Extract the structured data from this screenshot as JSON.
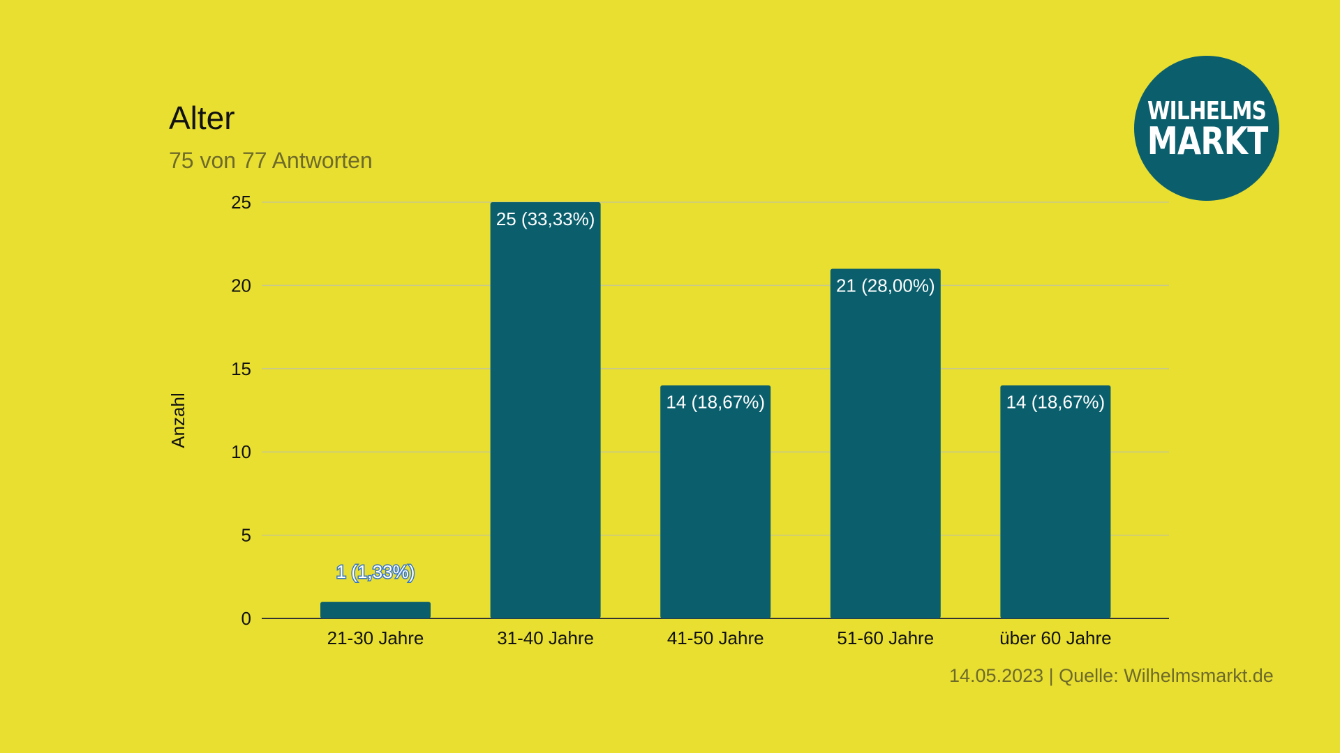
{
  "title": "Alter",
  "subtitle": "75 von 77 Antworten",
  "footer": "14.05.2023 | Quelle: Wilhelmsmarkt.de",
  "logo": {
    "line1": "WILHELMS",
    "line2": "MARKT"
  },
  "colors": {
    "background": "#e8df30",
    "bar": "#0b5f6d",
    "grid": "#c9c98a"
  },
  "chart_data": {
    "type": "bar",
    "title": "Alter",
    "subtitle": "75 von 77 Antworten",
    "xlabel": "",
    "ylabel": "Anzahl",
    "ylim": [
      0,
      25
    ],
    "yticks": [
      0,
      5,
      10,
      15,
      20,
      25
    ],
    "grid": true,
    "categories": [
      "21-30 Jahre",
      "31-40 Jahre",
      "41-50 Jahre",
      "51-60 Jahre",
      "über 60 Jahre"
    ],
    "values": [
      1,
      25,
      14,
      21,
      14
    ],
    "data_labels": [
      "1 (1,33%)",
      "25 (33,33%)",
      "14 (18,67%)",
      "21 (28,00%)",
      "14 (18,67%)"
    ]
  }
}
